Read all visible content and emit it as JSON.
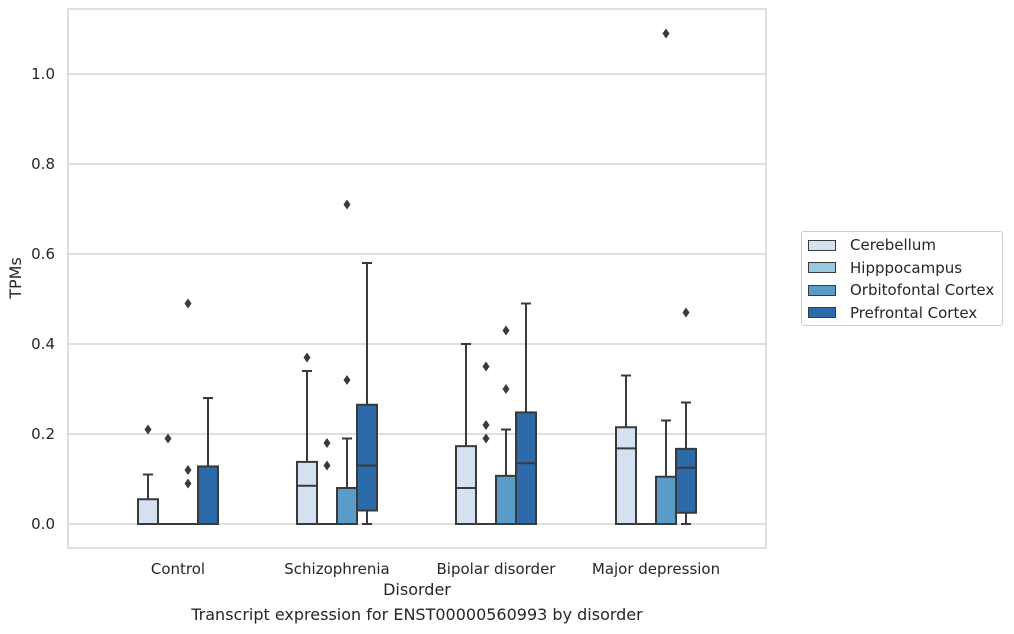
{
  "caption": "Transcript expression for ENST00000560993 by disorder",
  "chart_data": {
    "type": "boxplot",
    "xlabel": "Disorder",
    "ylabel": "TPMs",
    "ylim": [
      -0.052,
      1.15
    ],
    "yticks": [
      0.0,
      0.2,
      0.4,
      0.6,
      0.8,
      1.0
    ],
    "ytick_labels": [
      "0.0",
      "0.2",
      "0.4",
      "0.6",
      "0.8",
      "1.0"
    ],
    "grid": "horizontal",
    "legend_position": "right",
    "categories": [
      "Control",
      "Schizophrenia",
      "Bipolar disorder",
      "Major depression"
    ],
    "series": [
      {
        "name": "Cerebellum",
        "color": "#d4e1f0",
        "boxes": [
          {
            "q1": 0.0,
            "median": 0.0,
            "q3": 0.055,
            "whisker_low": 0.0,
            "whisker_high": 0.11,
            "outliers": [
              0.21
            ]
          },
          {
            "q1": 0.0,
            "median": 0.085,
            "q3": 0.138,
            "whisker_low": 0.0,
            "whisker_high": 0.34,
            "outliers": [
              0.37
            ]
          },
          {
            "q1": 0.0,
            "median": 0.08,
            "q3": 0.173,
            "whisker_low": 0.0,
            "whisker_high": 0.4,
            "outliers": []
          },
          {
            "q1": 0.0,
            "median": 0.168,
            "q3": 0.215,
            "whisker_low": 0.0,
            "whisker_high": 0.33,
            "outliers": []
          }
        ]
      },
      {
        "name": "Hipppocampus",
        "color": "#9ac8e0",
        "boxes": [
          {
            "q1": 0.0,
            "median": 0.0,
            "q3": 0.0,
            "whisker_low": 0.0,
            "whisker_high": 0.0,
            "outliers": [
              0.19
            ]
          },
          {
            "q1": 0.0,
            "median": 0.0,
            "q3": 0.0,
            "whisker_low": 0.0,
            "whisker_high": 0.0,
            "outliers": [
              0.13,
              0.18
            ]
          },
          {
            "q1": 0.0,
            "median": 0.0,
            "q3": 0.0,
            "whisker_low": 0.0,
            "whisker_high": 0.0,
            "outliers": [
              0.19,
              0.22,
              0.35
            ]
          },
          {
            "q1": 0.0,
            "median": 0.0,
            "q3": 0.0,
            "whisker_low": 0.0,
            "whisker_high": 0.0,
            "outliers": []
          }
        ]
      },
      {
        "name": "Orbitofontal Cortex",
        "color": "#5a9bc8",
        "boxes": [
          {
            "q1": 0.0,
            "median": 0.0,
            "q3": 0.0,
            "whisker_low": 0.0,
            "whisker_high": 0.0,
            "outliers": [
              0.09,
              0.12,
              0.49
            ]
          },
          {
            "q1": 0.0,
            "median": 0.0,
            "q3": 0.08,
            "whisker_low": 0.0,
            "whisker_high": 0.19,
            "outliers": [
              0.32,
              0.71
            ]
          },
          {
            "q1": 0.0,
            "median": 0.0,
            "q3": 0.107,
            "whisker_low": 0.0,
            "whisker_high": 0.21,
            "outliers": [
              0.3,
              0.43
            ]
          },
          {
            "q1": 0.0,
            "median": 0.0,
            "q3": 0.105,
            "whisker_low": 0.0,
            "whisker_high": 0.23,
            "outliers": [
              1.09
            ]
          }
        ]
      },
      {
        "name": "Prefrontal Cortex",
        "color": "#2c6aa9",
        "boxes": [
          {
            "q1": 0.0,
            "median": 0.0,
            "q3": 0.128,
            "whisker_low": 0.0,
            "whisker_high": 0.28,
            "outliers": []
          },
          {
            "q1": 0.03,
            "median": 0.13,
            "q3": 0.265,
            "whisker_low": 0.0,
            "whisker_high": 0.58,
            "outliers": []
          },
          {
            "q1": 0.0,
            "median": 0.135,
            "q3": 0.248,
            "whisker_low": 0.0,
            "whisker_high": 0.49,
            "outliers": []
          },
          {
            "q1": 0.025,
            "median": 0.125,
            "q3": 0.167,
            "whisker_low": 0.0,
            "whisker_high": 0.27,
            "outliers": [
              0.47
            ]
          }
        ]
      }
    ]
  }
}
